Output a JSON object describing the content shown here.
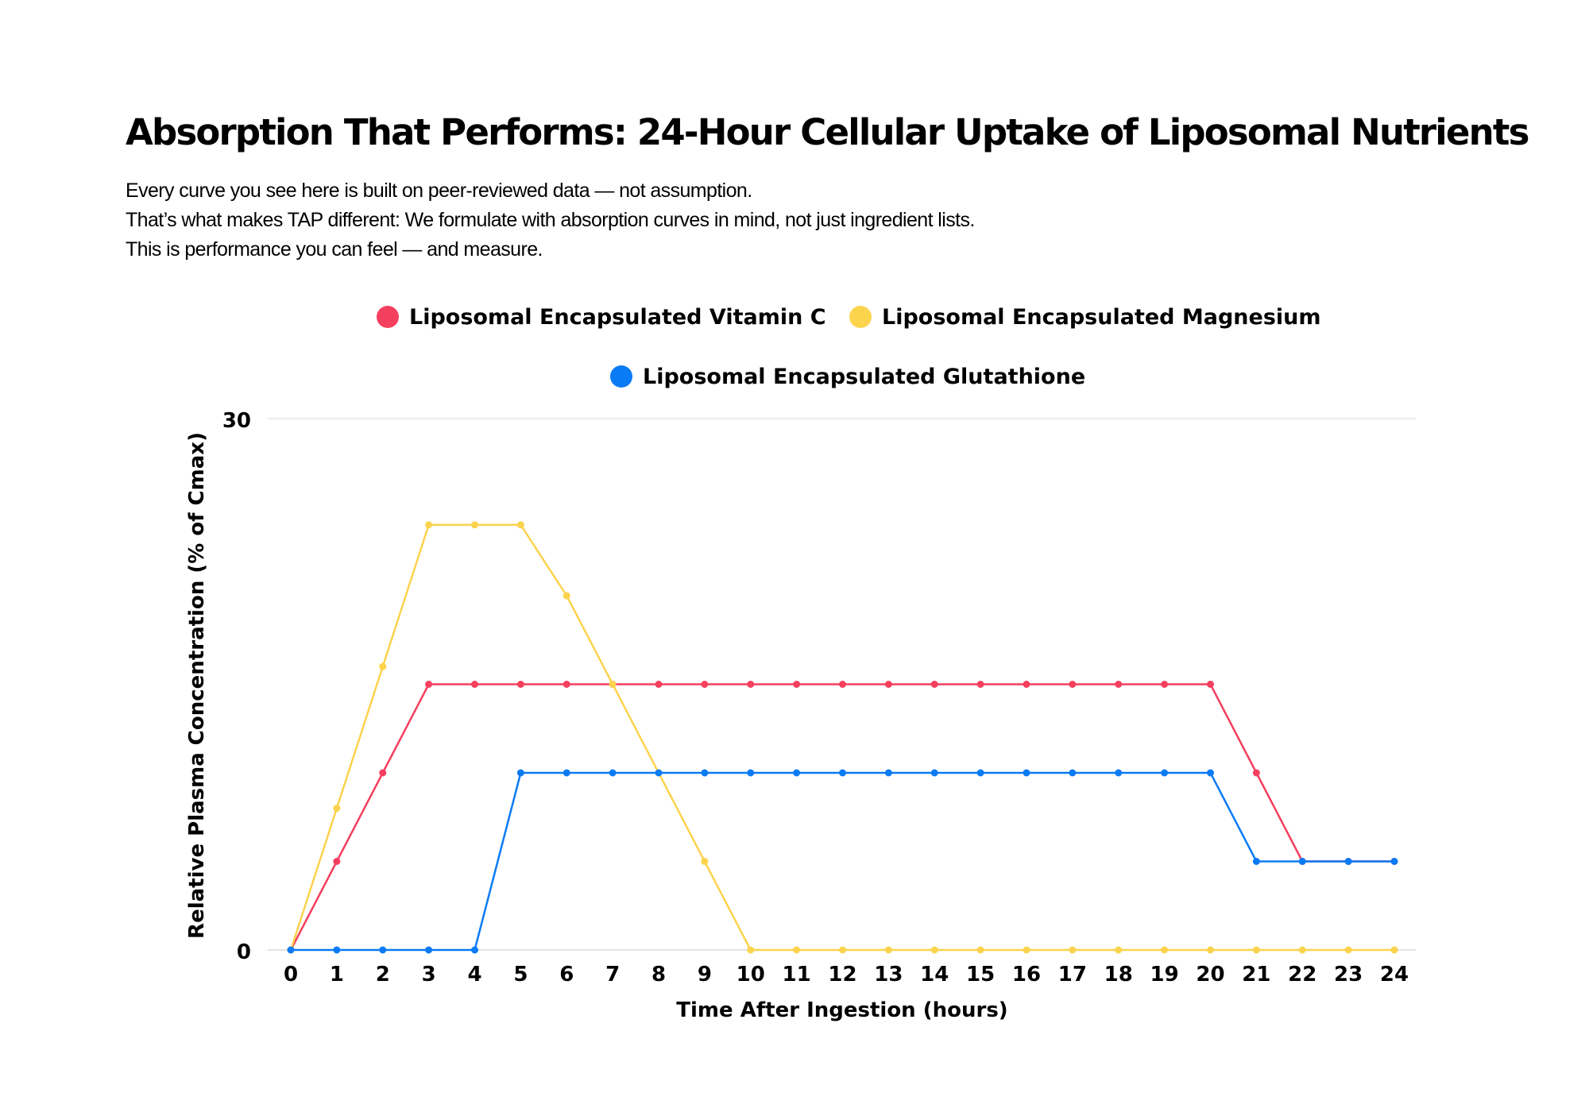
{
  "title": "Absorption That Performs: 24-Hour Cellular Uptake of Liposomal Nutrients",
  "subtitle_lines": [
    "Every curve you see here is built on peer-reviewed data — not assumption.",
    "That’s what makes TAP different: We formulate with absorption curves in mind, not just ingredient lists.",
    "This is performance you can feel — and measure."
  ],
  "chart_data": {
    "type": "line",
    "xlabel": "Time After Ingestion (hours)",
    "ylabel": "Relative Plasma Concentration (% of Cmax)",
    "x": [
      0,
      1,
      2,
      3,
      4,
      5,
      6,
      7,
      8,
      9,
      10,
      11,
      12,
      13,
      14,
      15,
      16,
      17,
      18,
      19,
      20,
      21,
      22,
      23,
      24
    ],
    "ylim": [
      0,
      30
    ],
    "yticks": [
      "0",
      "30"
    ],
    "grid": "horizontal",
    "legend_position": "top",
    "series": [
      {
        "name": "Liposomal Encapsulated Vitamin C",
        "color": "#f43f5e",
        "values": [
          0,
          5,
          10,
          15,
          15,
          15,
          15,
          15,
          15,
          15,
          15,
          15,
          15,
          15,
          15,
          15,
          15,
          15,
          15,
          15,
          15,
          10,
          5,
          5,
          5
        ]
      },
      {
        "name": "Liposomal Encapsulated Magnesium",
        "color": "#fcd34d",
        "values": [
          0,
          8,
          16,
          24,
          24,
          24,
          20,
          15,
          10,
          5,
          0,
          0,
          0,
          0,
          0,
          0,
          0,
          0,
          0,
          0,
          0,
          0,
          0,
          0,
          0
        ]
      },
      {
        "name": "Liposomal Encapsulated Glutathione",
        "color": "#0b7bf5",
        "values": [
          0,
          0,
          0,
          0,
          0,
          10,
          10,
          10,
          10,
          10,
          10,
          10,
          10,
          10,
          10,
          10,
          10,
          10,
          10,
          10,
          10,
          5,
          5,
          5,
          5
        ]
      }
    ]
  }
}
